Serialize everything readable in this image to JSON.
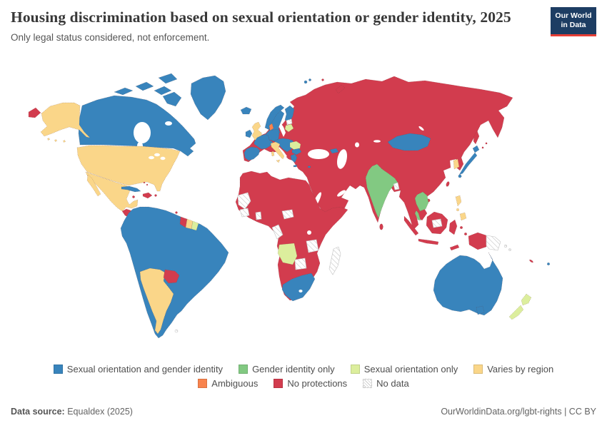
{
  "header": {
    "title": "Housing discrimination based on sexual orientation or gender identity, 2025",
    "subtitle": "Only legal status considered, not enforcement."
  },
  "logo": {
    "line1": "Our World",
    "line2": "in Data"
  },
  "legend": [
    {
      "key": "so_gi",
      "label": "Sexual orientation and gender identity",
      "color": "#3884bc"
    },
    {
      "key": "gi_only",
      "label": "Gender identity only",
      "color": "#82c982"
    },
    {
      "key": "so_only",
      "label": "Sexual orientation only",
      "color": "#dcee9d"
    },
    {
      "key": "varies",
      "label": "Varies by region",
      "color": "#fad689"
    },
    {
      "key": "ambiguous",
      "label": "Ambiguous",
      "color": "#f8834d"
    },
    {
      "key": "none",
      "label": "No protections",
      "color": "#d23c4e"
    },
    {
      "key": "no_data",
      "label": "No data",
      "color": "hatch"
    }
  ],
  "footer": {
    "source_label": "Data source:",
    "source_value": "Equaldex (2025)",
    "right": "OurWorldinData.org/lgbt-rights | CC BY"
  },
  "chart_data": {
    "type": "choropleth",
    "title": "Housing discrimination based on sexual orientation or gender identity",
    "year": "2025",
    "subtitle": "Only legal status considered, not enforcement.",
    "legend_position": "bottom-center",
    "categories": [
      "Sexual orientation and gender identity",
      "Gender identity only",
      "Sexual orientation only",
      "Varies by region",
      "Ambiguous",
      "No protections",
      "No data"
    ],
    "assignments": {
      "Sexual orientation and gender identity": [
        "Canada",
        "Greenland",
        "Cuba",
        "Costa Rica",
        "Panama",
        "Colombia",
        "Venezuela",
        "Ecuador",
        "Peru",
        "Bolivia",
        "Brazil",
        "Chile",
        "Uruguay",
        "Iceland",
        "Ireland",
        "Norway",
        "Sweden",
        "Finland",
        "France",
        "Germany",
        "Netherlands",
        "Belgium",
        "Spain",
        "Portugal",
        "Switzerland",
        "Austria",
        "Hungary",
        "Croatia",
        "Serbia",
        "Bulgaria",
        "Greece",
        "Cyprus",
        "Georgia",
        "Mongolia",
        "Japan",
        "South Africa",
        "Australia",
        "Fiji"
      ],
      "Gender identity only": [
        "India",
        "Nepal",
        "Thailand",
        "Cambodia"
      ],
      "Sexual orientation only": [
        "Lithuania",
        "Romania",
        "Angola",
        "French Guiana",
        "New Zealand"
      ],
      "Varies by region": [
        "United States",
        "Mexico",
        "United Kingdom",
        "Italy",
        "Argentina",
        "Suriname",
        "South Korea",
        "Philippines"
      ],
      "Ambiguous": [
        "Denmark"
      ],
      "No protections": [
        "Russia",
        "Ukraine",
        "Belarus",
        "Poland",
        "Czechia",
        "Albania",
        "Turkey",
        "Kazakhstan",
        "China",
        "North Korea",
        "Vietnam",
        "Myanmar",
        "Laos",
        "Pakistan",
        "Afghanistan",
        "Iran",
        "Iraq",
        "Saudi Arabia",
        "Yemen",
        "Egypt",
        "Libya",
        "Algeria",
        "Tunisia",
        "Morocco",
        "Mali",
        "Niger",
        "Chad",
        "Sudan",
        "Nigeria",
        "Ethiopia",
        "Somalia",
        "Kenya",
        "Tanzania",
        "DR Congo",
        "Namibia",
        "Zimbabwe",
        "Mozambique",
        "Indonesia",
        "Malaysia",
        "Sri Lanka",
        "Taiwan",
        "Haiti",
        "Dominican Republic",
        "Jamaica",
        "Guatemala",
        "Honduras",
        "Nicaragua",
        "Guyana",
        "Paraguay"
      ],
      "No data": [
        "Western Sahara",
        "Mauritania",
        "Guinea",
        "Ghana",
        "Central African Republic",
        "Republic of the Congo",
        "Zambia",
        "Botswana",
        "Madagascar",
        "Estonia",
        "Latvia",
        "Bangladesh",
        "Papua New Guinea",
        "Solomon Islands"
      ]
    }
  }
}
